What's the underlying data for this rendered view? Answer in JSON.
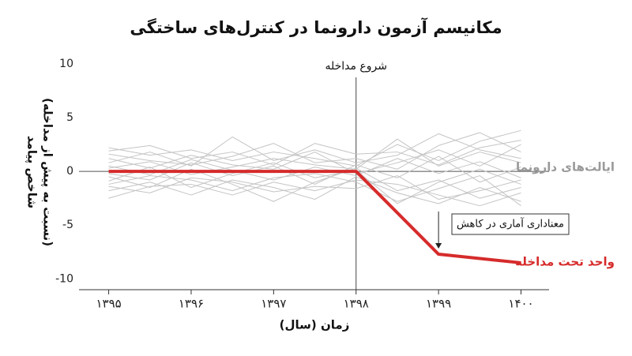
{
  "chart_data": {
    "type": "line",
    "title": "مکانیسم آزمون دارونما در کنترل‌های ساختگی",
    "xlabel": "زمان (سال)",
    "ylabel": [
      "شاخص پیامد",
      "(نسبت به پیش از مداخله)"
    ],
    "xlim": [
      1394.64,
      1400.34
    ],
    "ylim": [
      -11,
      10.5
    ],
    "xticks": [
      {
        "value": 1395,
        "label": "۱۳۹۵"
      },
      {
        "value": 1396,
        "label": "۱۳۹۶"
      },
      {
        "value": 1397,
        "label": "۱۳۹۷"
      },
      {
        "value": 1398,
        "label": "۱۳۹۸"
      },
      {
        "value": 1399,
        "label": "۱۳۹۹"
      },
      {
        "value": 1400,
        "label": "۱۴۰۰"
      }
    ],
    "yticks": [
      10,
      5,
      0,
      -5,
      -10
    ],
    "zero_line": 0,
    "intervention": {
      "x": 1398,
      "label": "شروع مداخله"
    },
    "annotation": {
      "text": "معناداری آماری در کاهش",
      "x": 1399,
      "y": -7.7
    },
    "series": [
      {
        "name": "ایالت‌های دارونما",
        "color": "#c4c4c4",
        "x": [
          1395,
          1395.5,
          1396,
          1396.5,
          1397,
          1397.5,
          1398,
          1398.5,
          1399,
          1399.5,
          1400
        ],
        "values": [
          [
            2.2,
            1.5,
            2.0,
            1.0,
            1.8,
            1.2,
            0.5,
            2.5,
            1.0,
            2.8,
            3.8
          ],
          [
            -1.8,
            -1.0,
            -2.2,
            -0.8,
            -1.5,
            -2.6,
            -0.5,
            -2.0,
            -3.0,
            -1.5,
            -2.8
          ],
          [
            0.8,
            1.8,
            0.5,
            3.2,
            1.0,
            2.0,
            0.8,
            1.5,
            3.5,
            2.0,
            1.2
          ],
          [
            -0.5,
            -1.5,
            0.2,
            -1.2,
            -2.8,
            -1.0,
            0.3,
            -1.8,
            -0.8,
            -2.5,
            -1.5
          ],
          [
            1.2,
            0.3,
            1.5,
            0.6,
            0.2,
            1.8,
            -0.2,
            0.8,
            2.0,
            0.5,
            2.5
          ],
          [
            -1.2,
            -0.4,
            -0.8,
            -1.8,
            -0.6,
            -0.2,
            -1.0,
            -2.8,
            -1.6,
            -0.4,
            -3.2
          ],
          [
            0.3,
            0.9,
            -0.3,
            0.4,
            1.2,
            0.6,
            0.2,
            3.0,
            0.5,
            1.8,
            0.8
          ],
          [
            -0.2,
            -0.8,
            0.8,
            -0.4,
            0.5,
            -1.2,
            0.6,
            -0.6,
            1.4,
            -1.0,
            0.4
          ],
          [
            1.6,
            1.0,
            0.6,
            1.4,
            2.6,
            0.8,
            1.2,
            0.2,
            2.4,
            3.6,
            1.8
          ],
          [
            -2.5,
            -1.4,
            -1.2,
            -2.2,
            -1.0,
            -1.8,
            -0.8,
            -1.2,
            -2.2,
            -3.2,
            -2.0
          ],
          [
            0.5,
            -0.3,
            1.1,
            0.1,
            -0.8,
            0.4,
            -0.4,
            1.2,
            -0.2,
            0.9,
            -0.6
          ],
          [
            -0.9,
            0.4,
            -1.5,
            -0.2,
            0.8,
            -0.6,
            0.1,
            -3.0,
            -1.0,
            0.2,
            -1.2
          ],
          [
            1.9,
            2.4,
            1.2,
            1.8,
            0.6,
            2.6,
            1.6,
            1.8,
            0.6,
            2.2,
            2.9
          ],
          [
            -1.4,
            -2.0,
            -0.6,
            -1.0,
            -1.9,
            -1.4,
            -1.6,
            -0.4,
            -2.6,
            -1.8,
            -0.8
          ]
        ]
      },
      {
        "name": "واحد تحت مداخله",
        "color": "#d62b2b",
        "x": [
          1395,
          1396,
          1397,
          1398,
          1399,
          1400
        ],
        "values": [
          0,
          0,
          0,
          0,
          -7.7,
          -8.5
        ]
      }
    ]
  }
}
